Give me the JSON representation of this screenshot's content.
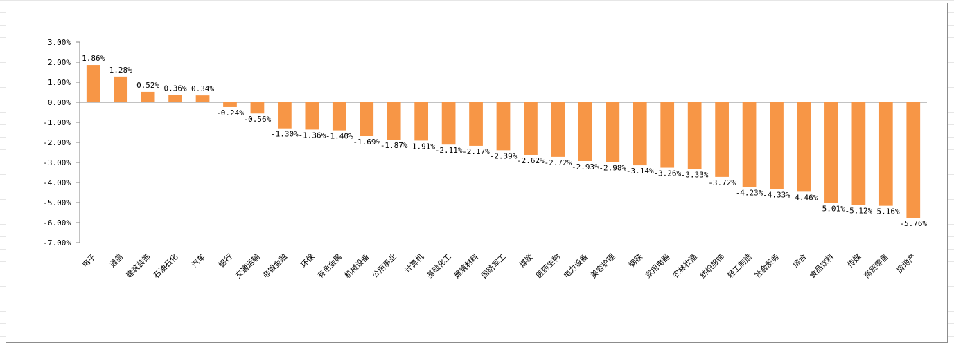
{
  "chart_data": {
    "type": "bar",
    "title": "",
    "xlabel": "",
    "ylabel": "",
    "ylim": [
      -7,
      3
    ],
    "yticks": [
      3,
      2,
      1,
      0,
      -1,
      -2,
      -3,
      -4,
      -5,
      -6,
      -7
    ],
    "ytick_labels": [
      "3.00%",
      "2.00%",
      "1.00%",
      "0.00%",
      "-1.00%",
      "-2.00%",
      "-3.00%",
      "-4.00%",
      "-5.00%",
      "-6.00%",
      "-7.00%"
    ],
    "grid": false,
    "legend": "none",
    "bar_color": "#F79646",
    "categories": [
      "电子",
      "通信",
      "建筑装饰",
      "石油石化",
      "汽车",
      "银行",
      "交通运输",
      "非银金融",
      "环保",
      "有色金属",
      "机械设备",
      "公用事业",
      "计算机",
      "基础化工",
      "建筑材料",
      "国防军工",
      "煤炭",
      "医药生物",
      "电力设备",
      "美容护理",
      "钢铁",
      "家用电器",
      "农林牧渔",
      "纺织服饰",
      "轻工制造",
      "社会服务",
      "综合",
      "食品饮料",
      "传媒",
      "商贸零售",
      "房地产"
    ],
    "values": [
      1.86,
      1.28,
      0.52,
      0.36,
      0.34,
      -0.24,
      -0.56,
      -1.3,
      -1.36,
      -1.4,
      -1.69,
      -1.87,
      -1.91,
      -2.11,
      -2.17,
      -2.39,
      -2.62,
      -2.72,
      -2.93,
      -2.98,
      -3.14,
      -3.26,
      -3.33,
      -3.72,
      -4.23,
      -4.33,
      -4.46,
      -5.01,
      -5.12,
      -5.16,
      -5.76
    ],
    "data_labels": [
      "1.86%",
      "1.28%",
      "0.52%",
      "0.36%",
      "0.34%",
      "-0.24%",
      "-0.56%",
      "-1.30%",
      "-1.36%",
      "-1.40%",
      "-1.69%",
      "-1.87%",
      "-1.91%",
      "-2.11%",
      "-2.17%",
      "-2.39%",
      "-2.62%",
      "-2.72%",
      "-2.93%",
      "-2.98%",
      "-3.14%",
      "-3.26%",
      "-3.33%",
      "-3.72%",
      "-4.23%",
      "-4.33%",
      "-4.46%",
      "-5.01%",
      "-5.12%",
      "-5.16%",
      "-5.76%"
    ]
  }
}
